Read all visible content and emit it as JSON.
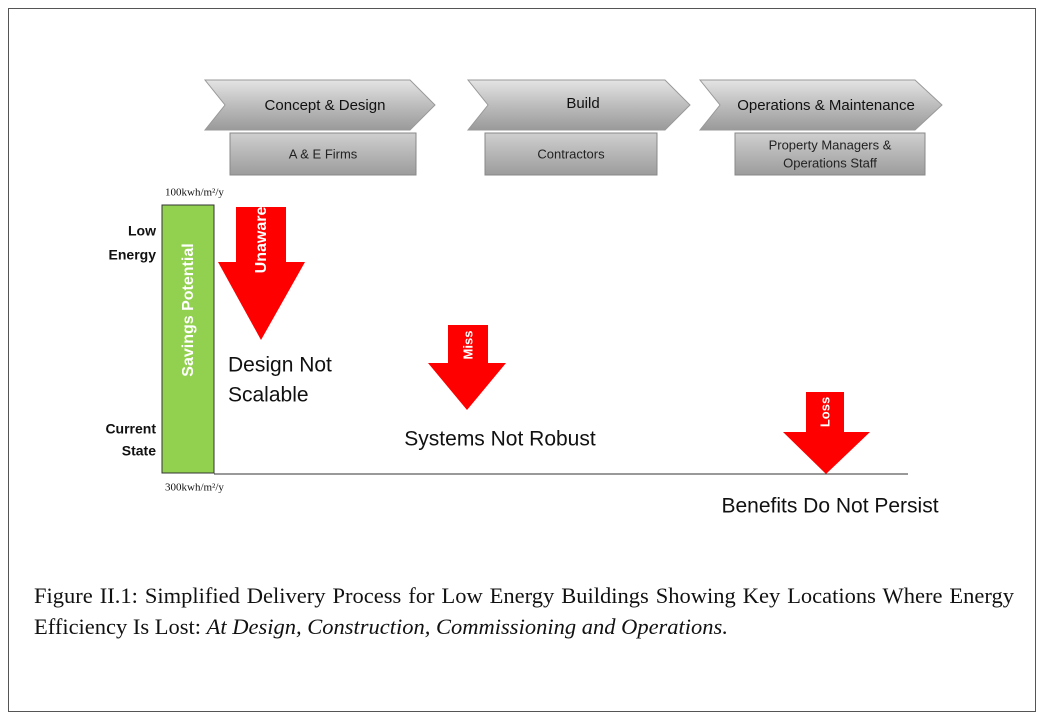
{
  "phases": [
    {
      "title": "Concept & Design",
      "actor": "A & E Firms"
    },
    {
      "title": "Build",
      "actor": "Contractors"
    },
    {
      "title": "Operations & Maintenance",
      "actor_lines": [
        "Property Managers &",
        "Operations Staff"
      ]
    }
  ],
  "axis": {
    "top": "100kwh/m²/y",
    "bottom": "300kwh/m²/y",
    "high_label": [
      "Low",
      "Energy"
    ],
    "low_label": [
      "Current",
      "State"
    ],
    "bar_label": "Savings Potential"
  },
  "losses": [
    {
      "arrow": "Unaware",
      "lines": [
        "Design Not",
        "Scalable"
      ]
    },
    {
      "arrow": "Miss",
      "lines": [
        "Systems Not Robust"
      ]
    },
    {
      "arrow": "Loss",
      "lines": [
        "Benefits Do Not Persist"
      ]
    }
  ],
  "caption": {
    "text": "Figure II.1: Simplified Delivery Process for Low Energy Buildings Showing Key Locations Where Energy Efficiency Is Lost:",
    "emphasis": "At Design, Construction, Commissioning and Operations."
  }
}
